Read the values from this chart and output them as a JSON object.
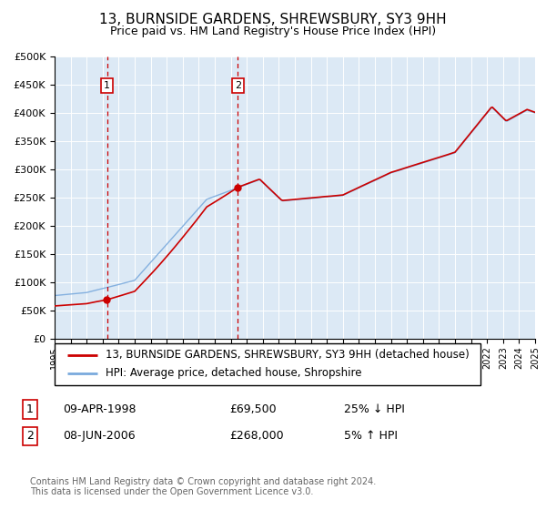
{
  "title": "13, BURNSIDE GARDENS, SHREWSBURY, SY3 9HH",
  "subtitle": "Price paid vs. HM Land Registry's House Price Index (HPI)",
  "background_color": "#ffffff",
  "plot_bg_color": "#dce9f5",
  "grid_color": "#ffffff",
  "red_line_color": "#cc0000",
  "blue_line_color": "#7aaadd",
  "sale1_date": "09-APR-1998",
  "sale1_price": 69500,
  "sale1_label": "25% ↓ HPI",
  "sale1_year": 1998.27,
  "sale2_date": "08-JUN-2006",
  "sale2_price": 268000,
  "sale2_label": "5% ↑ HPI",
  "sale2_year": 2006.44,
  "legend_line1": "13, BURNSIDE GARDENS, SHREWSBURY, SY3 9HH (detached house)",
  "legend_line2": "HPI: Average price, detached house, Shropshire",
  "footer": "Contains HM Land Registry data © Crown copyright and database right 2024.\nThis data is licensed under the Open Government Licence v3.0.",
  "ylim": [
    0,
    500000
  ],
  "yticks": [
    0,
    50000,
    100000,
    150000,
    200000,
    250000,
    300000,
    350000,
    400000,
    450000,
    500000
  ],
  "xmin": 1995,
  "xmax": 2025
}
